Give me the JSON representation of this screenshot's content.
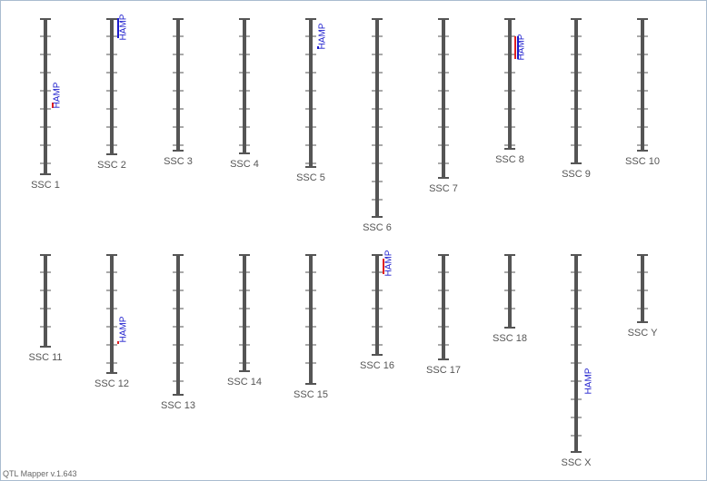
{
  "chromosomes": [
    {
      "label": "SSC 1",
      "qtl": "HAMP"
    },
    {
      "label": "SSC 2",
      "qtl": "HAMP"
    },
    {
      "label": "SSC 3"
    },
    {
      "label": "SSC 4"
    },
    {
      "label": "SSC 5",
      "qtl": "HAMP"
    },
    {
      "label": "SSC 6"
    },
    {
      "label": "SSC 7"
    },
    {
      "label": "SSC 8",
      "qtl": "HAMP"
    },
    {
      "label": "SSC 9"
    },
    {
      "label": "SSC 10"
    },
    {
      "label": "SSC 11"
    },
    {
      "label": "SSC 12",
      "qtl": "HAMP"
    },
    {
      "label": "SSC 13"
    },
    {
      "label": "SSC 14"
    },
    {
      "label": "SSC 15"
    },
    {
      "label": "SSC 16",
      "qtl": "HAMP"
    },
    {
      "label": "SSC 17"
    },
    {
      "label": "SSC 18"
    },
    {
      "label": "SSC X",
      "qtl": "HAMP"
    },
    {
      "label": "SSC Y"
    }
  ],
  "footer": "QTL Mapper v.1.643"
}
